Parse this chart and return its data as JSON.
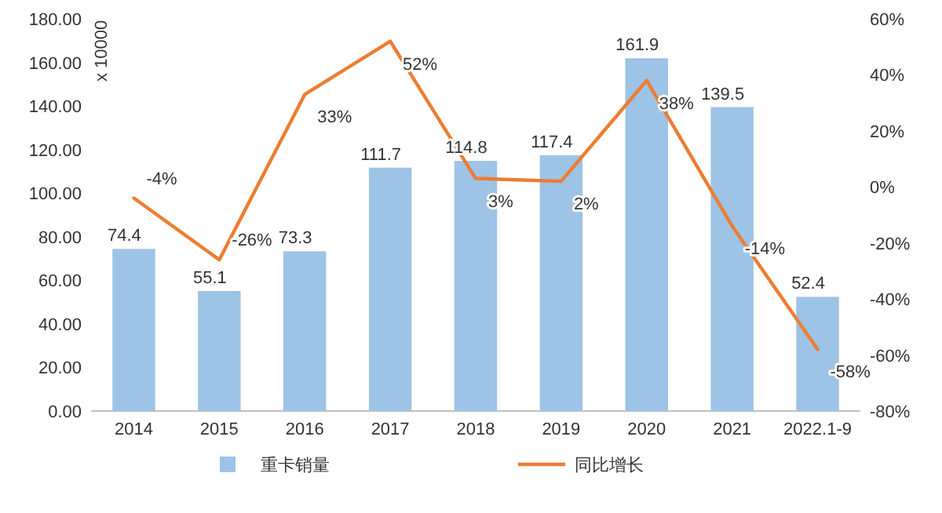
{
  "chart_data": {
    "type": "bar",
    "categories": [
      "2014",
      "2015",
      "2016",
      "2017",
      "2018",
      "2019",
      "2020",
      "2021",
      "2022.1-9"
    ],
    "series": [
      {
        "name": "重卡销量",
        "color": "#9dc3e6",
        "values": [
          74.4,
          55.1,
          73.3,
          111.7,
          114.8,
          117.4,
          161.9,
          139.5,
          52.4
        ],
        "value_labels": [
          "74.4",
          "55.1",
          "73.3",
          "111.7",
          "114.8",
          "117.4",
          "161.9",
          "139.5",
          "52.4"
        ]
      },
      {
        "name": "同比增长",
        "type": "line",
        "axis": "y2",
        "color": "#ed7d31",
        "values": [
          -4,
          -26,
          33,
          52,
          3,
          2,
          38,
          -14,
          -58
        ],
        "value_labels": [
          "-4%",
          "-26%",
          "33%",
          "52%",
          "3%",
          "2%",
          "38%",
          "-14%",
          "-58%"
        ]
      }
    ],
    "ylim": [
      0,
      180
    ],
    "yticks": [
      {
        "value": 0,
        "label": "0.00"
      },
      {
        "value": 20,
        "label": "20.00"
      },
      {
        "value": 40,
        "label": "40.00"
      },
      {
        "value": 60,
        "label": "60.00"
      },
      {
        "value": 80,
        "label": "80.00"
      },
      {
        "value": 100,
        "label": "100.00"
      },
      {
        "value": 120,
        "label": "120.00"
      },
      {
        "value": 140,
        "label": "140.00"
      },
      {
        "value": 160,
        "label": "160.00"
      },
      {
        "value": 180,
        "label": "180.00"
      }
    ],
    "y2lim": [
      -80,
      60
    ],
    "y2ticks": [
      {
        "value": -80,
        "label": "-80%"
      },
      {
        "value": -60,
        "label": "-60%"
      },
      {
        "value": -40,
        "label": "-40%"
      },
      {
        "value": -20,
        "label": "-20%"
      },
      {
        "value": 0,
        "label": "0%"
      },
      {
        "value": 20,
        "label": "20%"
      },
      {
        "value": 40,
        "label": "40%"
      },
      {
        "value": 60,
        "label": "60%"
      }
    ],
    "annotations": [
      "x 10000"
    ],
    "legend": "bottom"
  }
}
